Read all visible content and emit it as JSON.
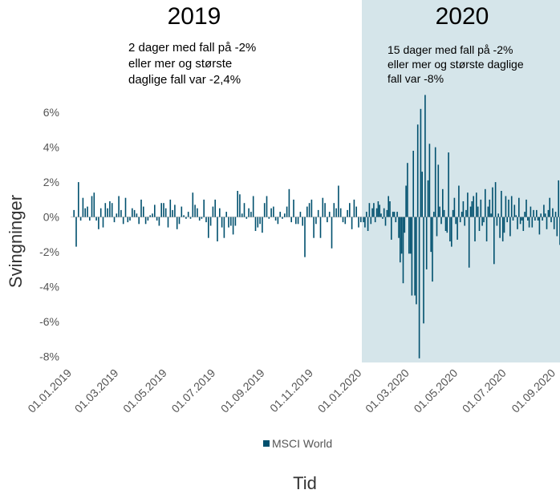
{
  "chart_data": {
    "type": "bar",
    "title": "",
    "xlabel": "Tid",
    "ylabel": "Svingninger",
    "ylim": [
      -8,
      7
    ],
    "yticks": [
      "6%",
      "4%",
      "2%",
      "0%",
      "-2%",
      "-4%",
      "-6%",
      "-8%"
    ],
    "ytick_values": [
      6,
      4,
      2,
      0,
      -2,
      -4,
      -6,
      -8
    ],
    "xticks": [
      "01.01.2019",
      "01.03.2019",
      "01.05.2019",
      "01.07.2019",
      "01.09.2019",
      "01.11.2019",
      "01.01.2020",
      "01.03.2020",
      "01.05.2020",
      "01.07.2020",
      "01.09.2020"
    ],
    "legend": {
      "label": "MSCI World",
      "placement": "bottom"
    },
    "bar_color": "#00506e",
    "highlight_color": "#d5e5ea",
    "highlight_period": [
      "01.01.2020",
      "08.09.2020"
    ],
    "series": [
      {
        "name": "MSCI World",
        "period": "2019",
        "start": "01.01.2019",
        "end": "31.12.2019",
        "values": [
          0.4,
          -1.7,
          2.0,
          -0.2,
          1.1,
          0.5,
          0.6,
          -0.2,
          1.2,
          1.4,
          -0.2,
          -0.7,
          0.5,
          -0.6,
          0.8,
          0.5,
          0.9,
          0.8,
          -0.3,
          0.2,
          1.2,
          0.4,
          -0.4,
          1.1,
          -0.3,
          -0.2,
          0.5,
          0.4,
          0.2,
          -0.4,
          1.0,
          0.6,
          -0.4,
          -0.2,
          0.1,
          0.2,
          0.7,
          -0.2,
          -0.5,
          0.8,
          0.8,
          0.5,
          -0.6,
          1.0,
          0.4,
          0.7,
          -0.7,
          -0.4,
          0.6,
          0.1,
          -0.1,
          0.3,
          -0.1,
          1.4,
          0.7,
          0.5,
          -0.2,
          -0.1,
          1.0,
          -0.3,
          -1.2,
          -0.5,
          0.6,
          1.0,
          -1.4,
          0.5,
          -0.6,
          -1.2,
          0.3,
          -0.6,
          -0.5,
          -1.0,
          -0.5,
          1.5,
          1.3,
          0.2,
          0.8,
          -0.1,
          0.5,
          0.3,
          1.2,
          -0.8,
          -0.6,
          -0.4,
          -0.9,
          0.8,
          1.2,
          -0.1,
          0.5,
          0.6,
          -0.2,
          -0.4,
          0.3,
          -0.1,
          0.2,
          0.6,
          1.6,
          -0.3,
          1.0,
          -0.4,
          -0.4,
          0.3,
          -0.5,
          -2.3,
          0.6,
          0.8,
          1.0,
          -1.2,
          -0.4,
          0.4,
          -1.2,
          1.1,
          0.8,
          -0.3,
          0.3,
          -1.8,
          0.8,
          0.5,
          1.8,
          0.5,
          -0.3,
          -0.4,
          0.4,
          0.8,
          -0.7,
          1.0,
          0.6,
          -0.6,
          -0.3
        ]
      },
      {
        "name": "MSCI World",
        "period": "2020",
        "start": "01.01.2020",
        "end": "08.09.2020",
        "values": [
          -0.3,
          -0.6,
          0.3,
          -0.8,
          0.8,
          -0.4,
          0.5,
          0.8,
          -0.3,
          0.5,
          0.9,
          0.7,
          0.2,
          -0.1,
          0.5,
          -0.5,
          0.4,
          1.2,
          0.9,
          -1.3,
          0.3,
          0.3,
          -0.3,
          0.3,
          -1.2,
          -2.6,
          -2.1,
          -3.8,
          -0.9,
          1.8,
          3.1,
          -2.1,
          -2.1,
          -4.5,
          3.8,
          -4.5,
          -5.0,
          5.3,
          -8.1,
          6.2,
          2.6,
          -6.1,
          7.0,
          -3.0,
          2.1,
          4.2,
          -2.0,
          -3.7,
          0.3,
          4.0,
          -1.1,
          3.0,
          0.6,
          -0.4,
          1.6,
          0.4,
          -0.8,
          -0.9,
          3.7,
          -1.4,
          -1.7,
          0.4,
          1.1,
          -0.4,
          -1.3,
          1.8,
          -0.3,
          0.3,
          0.9,
          -0.5,
          0.4,
          1.4,
          -2.9,
          0.6,
          0.9,
          1.2,
          -1.4,
          1.4,
          0.6,
          -0.8,
          1.0,
          -0.5,
          -0.3,
          1.6,
          -1.4,
          0.6,
          1.0,
          0.2,
          1.7,
          -2.7,
          2.0,
          -0.5,
          0.2,
          -1.2,
          1.5,
          -1.4,
          -0.9,
          1.2,
          -0.3,
          1.0,
          -1.1,
          1.2,
          -0.2,
          0.7,
          0.1,
          -0.7,
          1.1,
          -0.4,
          -0.2,
          -0.8,
          0.3,
          1.0,
          -0.2,
          -0.6,
          0.6,
          -0.6,
          0.4,
          -0.2,
          0.4,
          -0.2,
          -1.0,
          0.2,
          -0.2,
          0.7,
          0.2,
          -0.7,
          0.4,
          1.1,
          -0.3,
          0.5,
          -0.7,
          0.3,
          -1.1,
          2.1,
          -1.6,
          0.4
        ]
      }
    ],
    "annotations": {
      "year_2019": "2019",
      "note_2019": [
        "2 dager med fall på -2%",
        "eller mer og største",
        "daglige fall var -2,4%"
      ],
      "year_2020": "2020",
      "note_2020": [
        "15 dager med fall på -2%",
        "eller mer og største daglige",
        "fall var -8%"
      ]
    }
  }
}
